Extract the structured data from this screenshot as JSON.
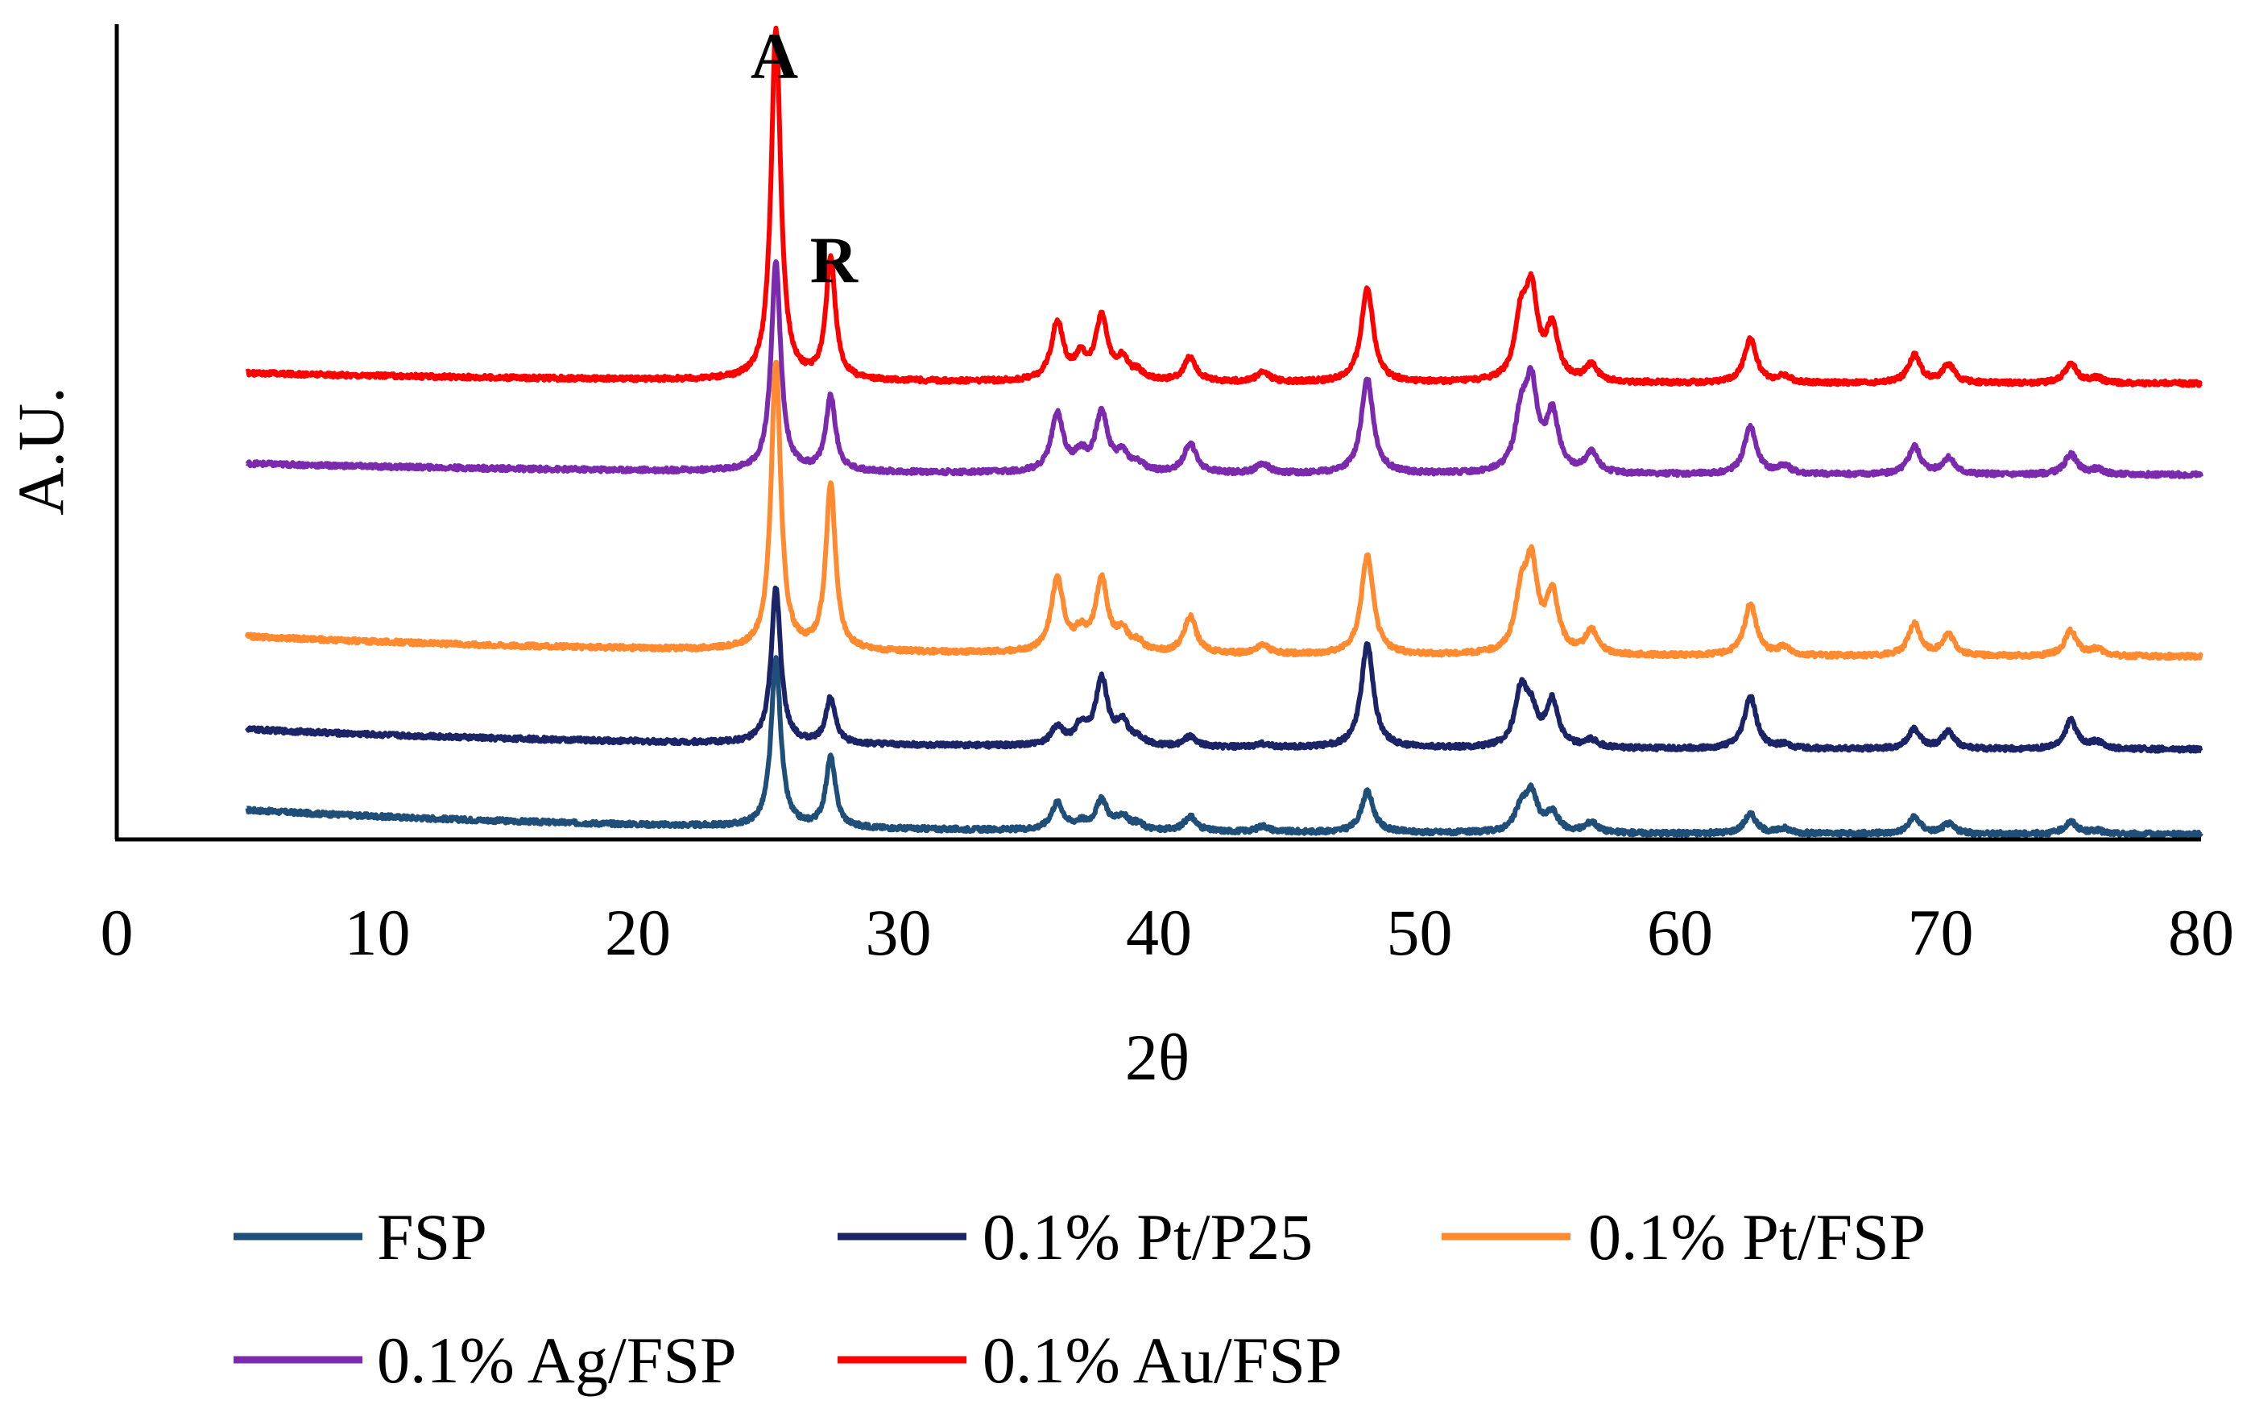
{
  "chart_data": {
    "type": "line",
    "title": "",
    "xlabel": "2θ",
    "ylabel": "A.U.",
    "xlim": [
      0,
      80
    ],
    "ylim": [
      0,
      100
    ],
    "xticks": [
      "0",
      "10",
      "20",
      "30",
      "40",
      "50",
      "60",
      "70",
      "80"
    ],
    "grid": false,
    "legend_position": "bottom",
    "annotations": [
      {
        "text": "A",
        "x": 25.3
      },
      {
        "text": "R",
        "x": 27.4
      }
    ],
    "peaks_2theta": [
      25.3,
      27.4,
      36.1,
      37.0,
      37.8,
      38.6,
      39.2,
      41.2,
      44.0,
      48.0,
      53.9,
      54.3,
      55.1,
      56.6,
      62.7,
      64.0,
      69.0,
      70.3,
      75.0,
      76.0
    ],
    "series": [
      {
        "name": "FSP",
        "color": "#1F4E79",
        "baseline": [
          3.6,
          0.6
        ],
        "peak_heights": [
          20.6,
          8.6,
          3.3,
          0.8,
          3.6,
          1.6,
          0.7,
          1.8,
          0.7,
          5.0,
          2.7,
          4.5,
          2.3,
          1.3,
          2.4,
          0.6,
          2.0,
          1.2,
          1.5,
          0.4
        ]
      },
      {
        "name": "0.1% Pt/P25",
        "color": "#1A2466",
        "baseline": [
          13.5,
          11.0
        ],
        "peak_heights": [
          19.0,
          5.7,
          2.2,
          2.3,
          8.1,
          2.6,
          0.8,
          1.2,
          0.4,
          12.8,
          6.7,
          3.8,
          5.6,
          0.9,
          6.4,
          0.4,
          2.4,
          2.1,
          3.5,
          0.8
        ]
      },
      {
        "name": "0.1% Pt/FSP",
        "color": "#FF8A30",
        "baseline": [
          24.9,
          22.4
        ],
        "peak_heights": [
          35.4,
          20.4,
          9.0,
          2.1,
          8.8,
          2.3,
          1.0,
          4.5,
          1.1,
          12.2,
          6.3,
          10.2,
          7.2,
          2.9,
          6.3,
          1.0,
          3.9,
          2.6,
          3.1,
          0.8
        ]
      },
      {
        "name": "0.1% Ag/FSP",
        "color": "#7B2AAE",
        "baseline": [
          46.1,
          44.7
        ],
        "peak_heights": [
          25.5,
          9.2,
          7.1,
          2.0,
          7.2,
          2.1,
          0.9,
          3.6,
          1.2,
          11.6,
          6.3,
          10.0,
          7.0,
          2.4,
          5.8,
          1.0,
          3.4,
          2.0,
          2.5,
          0.6
        ]
      },
      {
        "name": "0.1% Au/FSP",
        "color": "#FF0000",
        "baseline": [
          57.2,
          55.9
        ],
        "peak_heights": [
          43.1,
          14.7,
          7.1,
          2.6,
          7.6,
          2.4,
          0.9,
          3.0,
          1.2,
          11.6,
          7.0,
          10.1,
          6.4,
          2.0,
          5.4,
          0.8,
          3.4,
          2.2,
          2.4,
          0.6
        ]
      }
    ]
  }
}
